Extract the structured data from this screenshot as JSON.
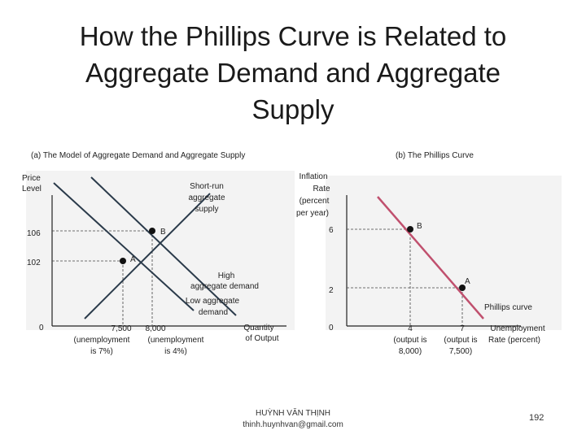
{
  "slide": {
    "title_lines": [
      "How the Phillips Curve is Related to",
      "Aggregate Demand and Aggregate",
      "Supply"
    ],
    "footer_name": "HUỲNH VĂN THỊNH",
    "footer_email": "thinh.huynhvan@gmail.com",
    "page_number": "192"
  },
  "panel_a": {
    "header": "(a) The Model of Aggregate Demand and Aggregate Supply",
    "y_label_1": "Price",
    "y_label_2": "Level",
    "x_label_1": "Quantity",
    "x_label_2": "of Output",
    "origin": "0",
    "y_tick_106": "106",
    "y_tick_102": "102",
    "x_tick_7500": "7,500",
    "x_tick_7500_sub1": "(unemployment",
    "x_tick_7500_sub2": "is 7%)",
    "x_tick_8000": "8,000",
    "x_tick_8000_sub1": "(unemployment",
    "x_tick_8000_sub2": "is 4%)",
    "sras_1": "Short-run",
    "sras_2": "aggregate",
    "sras_3": "supply",
    "high_ad_1": "High",
    "high_ad_2": "aggregate demand",
    "low_ad_1": "Low aggregate",
    "low_ad_2": "demand",
    "point_a": "A",
    "point_b": "B"
  },
  "panel_b": {
    "header": "(b) The Phillips Curve",
    "y_label_1": "Inflation",
    "y_label_2": "Rate",
    "y_label_3": "(percent",
    "y_label_4": "per year)",
    "y_tick_6": "6",
    "y_tick_2": "2",
    "origin": "0",
    "x_tick_4": "4",
    "x_tick_4_sub1": "(output is",
    "x_tick_4_sub2": "8,000)",
    "x_tick_7": "7",
    "x_tick_7_sub1": "(output is",
    "x_tick_7_sub2": "7,500)",
    "x_label_1": "Unemployment",
    "x_label_2": "Rate (percent)",
    "curve_label": "Phillips curve",
    "point_a": "A",
    "point_b": "B"
  },
  "colors": {
    "phillips_curve": "#c0506e",
    "curves_panel_a": "#2a3a4a",
    "panel_background": "#f2f2f2"
  }
}
